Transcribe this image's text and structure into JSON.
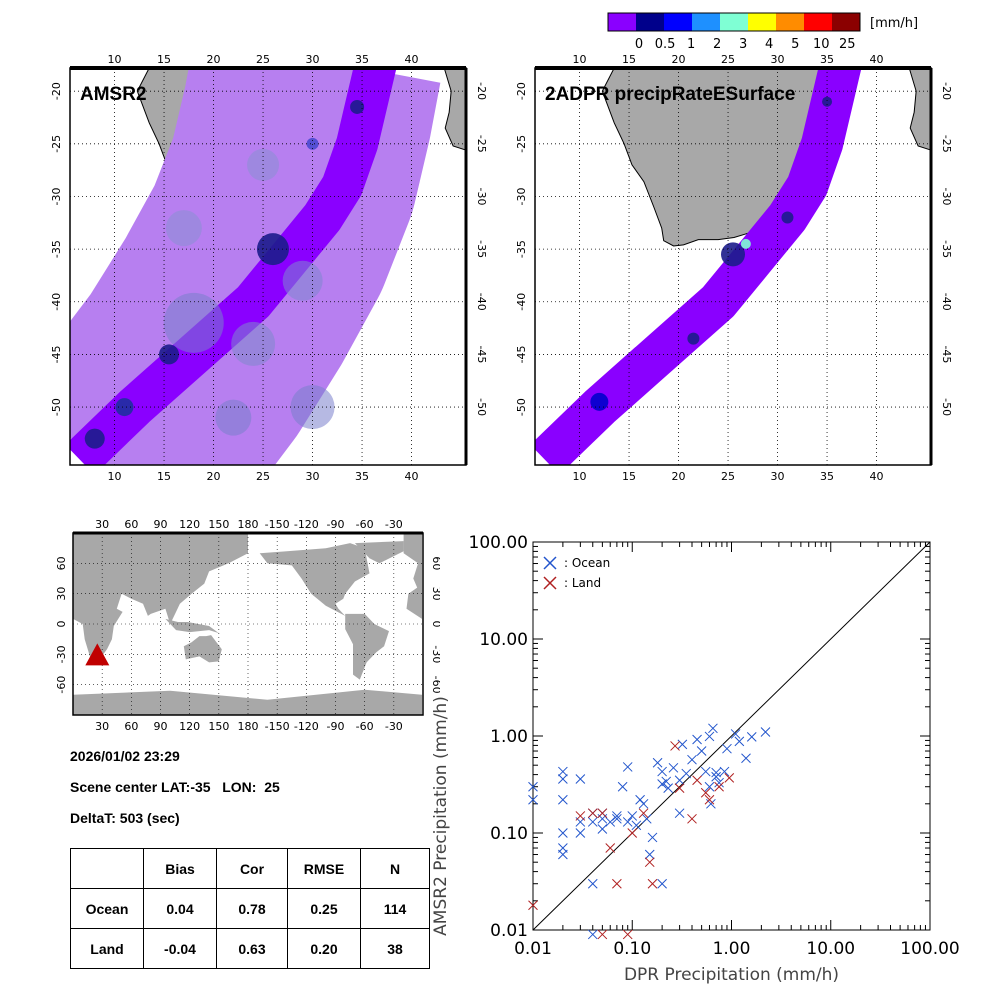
{
  "colorbar": {
    "unit": "[mm/h]",
    "colors": [
      "#8a00ff",
      "#00008b",
      "#0000ff",
      "#1e90ff",
      "#7fffd4",
      "#ffff00",
      "#ff8c00",
      "#ff0000",
      "#8b0000"
    ],
    "labels": [
      "0",
      "0.5",
      "1",
      "2",
      "3",
      "4",
      "5",
      "10",
      "25"
    ]
  },
  "maps": {
    "left_title": "AMSR2",
    "right_title": "2ADPR precipRateESurface",
    "lon_ticks": [
      "10",
      "15",
      "20",
      "25",
      "30",
      "35",
      "40"
    ],
    "lat_ticks": [
      "-20",
      "-25",
      "-30",
      "-35",
      "-40",
      "-45",
      "-50"
    ],
    "swath_color": "#8a00ff",
    "wide_swath_color": "#b77ff0",
    "land_color": "#a8a8a8"
  },
  "world_map": {
    "top_ticks": [
      "30",
      "60",
      "90",
      "120",
      "150",
      "180",
      "-150",
      "-120",
      "-90",
      "-60",
      "-30"
    ],
    "lat_ticks": [
      "60",
      "30",
      "0",
      "-30",
      "-60"
    ],
    "marker_color": "#c00000"
  },
  "info": {
    "datetime": "2026/01/02 23:29",
    "scene_center": "Scene center LAT:-35   LON:  25",
    "delta_t": "DeltaT:  503 (sec)"
  },
  "stats": {
    "headers": [
      "",
      "Bias",
      "Cor",
      "RMSE",
      "N"
    ],
    "rows": [
      [
        "Ocean",
        "0.04",
        "0.78",
        "0.25",
        "114"
      ],
      [
        "Land",
        "-0.04",
        "0.63",
        "0.20",
        "38"
      ]
    ]
  },
  "chart_data": {
    "type": "scatter",
    "xscale": "log",
    "yscale": "log",
    "xlim": [
      0.01,
      100
    ],
    "ylim": [
      0.01,
      100
    ],
    "xlabel": "DPR Precipitation (mm/h)",
    "ylabel": "AMSR2 Precipitation (mm/h)",
    "tick_labels": [
      "0.01",
      "0.10",
      "1.00",
      "10.00",
      "100.00"
    ],
    "diagonal": true,
    "series": [
      {
        "name": ": Ocean",
        "color": "#2255cc",
        "points": [
          [
            0.01,
            0.3
          ],
          [
            0.01,
            0.22
          ],
          [
            0.02,
            0.43
          ],
          [
            0.02,
            0.36
          ],
          [
            0.03,
            0.36
          ],
          [
            0.02,
            0.22
          ],
          [
            0.02,
            0.1
          ],
          [
            0.02,
            0.06
          ],
          [
            0.02,
            0.07
          ],
          [
            0.03,
            0.13
          ],
          [
            0.03,
            0.1
          ],
          [
            0.04,
            0.16
          ],
          [
            0.04,
            0.13
          ],
          [
            0.05,
            0.16
          ],
          [
            0.05,
            0.11
          ],
          [
            0.06,
            0.13
          ],
          [
            0.07,
            0.14
          ],
          [
            0.08,
            0.3
          ],
          [
            0.09,
            0.13
          ],
          [
            0.09,
            0.48
          ],
          [
            0.1,
            0.15
          ],
          [
            0.11,
            0.12
          ],
          [
            0.12,
            0.22
          ],
          [
            0.13,
            0.2
          ],
          [
            0.14,
            0.14
          ],
          [
            0.18,
            0.53
          ],
          [
            0.2,
            0.43
          ],
          [
            0.22,
            0.34
          ],
          [
            0.23,
            0.29
          ],
          [
            0.26,
            0.47
          ],
          [
            0.3,
            0.35
          ],
          [
            0.35,
            0.41
          ],
          [
            0.4,
            0.57
          ],
          [
            0.45,
            0.92
          ],
          [
            0.5,
            0.7
          ],
          [
            0.55,
            0.43
          ],
          [
            0.6,
            0.99
          ],
          [
            0.65,
            1.2
          ],
          [
            0.62,
            0.2
          ],
          [
            0.7,
            0.38
          ],
          [
            0.75,
            0.33
          ],
          [
            0.85,
            0.43
          ],
          [
            1.1,
            1.05
          ],
          [
            1.2,
            0.88
          ],
          [
            1.4,
            0.59
          ],
          [
            1.6,
            0.98
          ],
          [
            2.2,
            1.1
          ],
          [
            0.07,
            0.15
          ],
          [
            0.04,
            0.03
          ],
          [
            0.2,
            0.03
          ],
          [
            0.15,
            0.06
          ],
          [
            0.04,
            0.009
          ],
          [
            0.3,
            0.16
          ],
          [
            0.9,
            0.74
          ],
          [
            0.7,
            0.42
          ],
          [
            0.6,
            0.3
          ],
          [
            0.16,
            0.09
          ],
          [
            0.05,
            0.14
          ],
          [
            0.2,
            0.32
          ],
          [
            0.32,
            0.82
          ]
        ]
      },
      {
        "name": ": Land",
        "color": "#b02020",
        "points": [
          [
            0.01,
            0.018
          ],
          [
            0.04,
            0.16
          ],
          [
            0.05,
            0.16
          ],
          [
            0.06,
            0.07
          ],
          [
            0.07,
            0.03
          ],
          [
            0.1,
            0.1
          ],
          [
            0.13,
            0.16
          ],
          [
            0.15,
            0.05
          ],
          [
            0.16,
            0.03
          ],
          [
            0.27,
            0.79
          ],
          [
            0.3,
            0.29
          ],
          [
            0.4,
            0.14
          ],
          [
            0.45,
            0.35
          ],
          [
            0.55,
            0.26
          ],
          [
            0.6,
            0.22
          ],
          [
            0.75,
            0.3
          ],
          [
            0.95,
            0.37
          ],
          [
            0.05,
            0.009
          ],
          [
            0.09,
            0.009
          ],
          [
            0.03,
            0.15
          ]
        ]
      }
    ]
  }
}
